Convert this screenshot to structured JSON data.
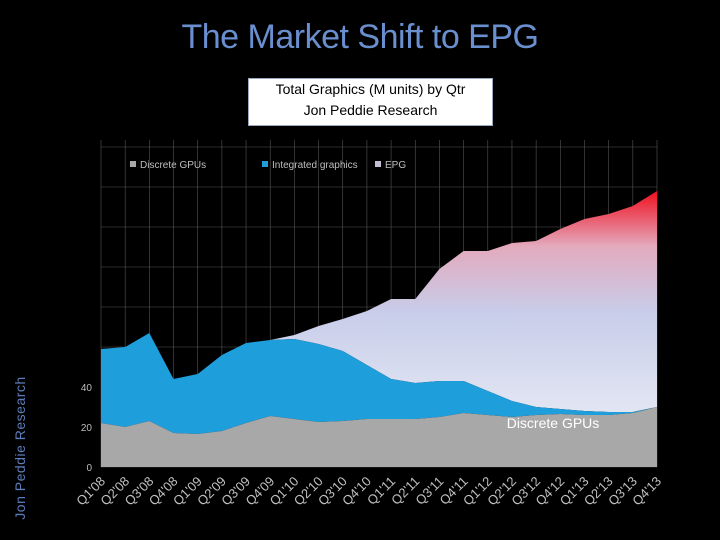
{
  "slide": {
    "title": "The Market Shift to EPG",
    "side_label": "Jon Peddie Research"
  },
  "chart_data": {
    "type": "area",
    "title": "Total Graphics (M units) by Qtr",
    "subtitle": "Jon Peddie Research",
    "categories": [
      "Q1'08",
      "Q2'08",
      "Q3'08",
      "Q4'08",
      "Q1'09",
      "Q2'09",
      "Q3'09",
      "Q4'09",
      "Q1'10",
      "Q2'10",
      "Q3'10",
      "Q4'10",
      "Q1'11",
      "Q2'11",
      "Q3'11",
      "Q4'11",
      "Q1'12",
      "Q2'12",
      "Q3'12",
      "Q4'12",
      "Q1'13",
      "Q2'13",
      "Q3'13",
      "Q4'13"
    ],
    "series": [
      {
        "name": "Discrete GPUs",
        "color": "#a8a8a8",
        "values": [
          22,
          20,
          23,
          17,
          16.5,
          18,
          22,
          25.5,
          24,
          22.5,
          23,
          24,
          24,
          24,
          25,
          27,
          26,
          25,
          26,
          26.5,
          26,
          26,
          27,
          30
        ]
      },
      {
        "name": "Integrated graphics",
        "color": "#1e9edb",
        "values": [
          37,
          40,
          44,
          27,
          30,
          38,
          40,
          38,
          40,
          39,
          35,
          27,
          20,
          18,
          18,
          16,
          12,
          8,
          4,
          2.5,
          2,
          1.5,
          0.5,
          0
        ]
      },
      {
        "name": "EPG",
        "color": "#e8192c",
        "values": [
          0,
          0,
          0,
          0,
          0,
          0,
          0,
          0,
          2,
          9,
          16,
          27,
          40,
          42,
          56,
          65,
          70,
          79,
          83,
          90,
          96,
          99,
          103,
          108
        ]
      }
    ],
    "y_ticks": [
      0,
      20,
      40
    ],
    "legend_labels": [
      "Discrete GPUs",
      "Integrated graphics",
      "EPG"
    ],
    "annotations": [
      {
        "text": "Discrete GPUs"
      }
    ]
  }
}
